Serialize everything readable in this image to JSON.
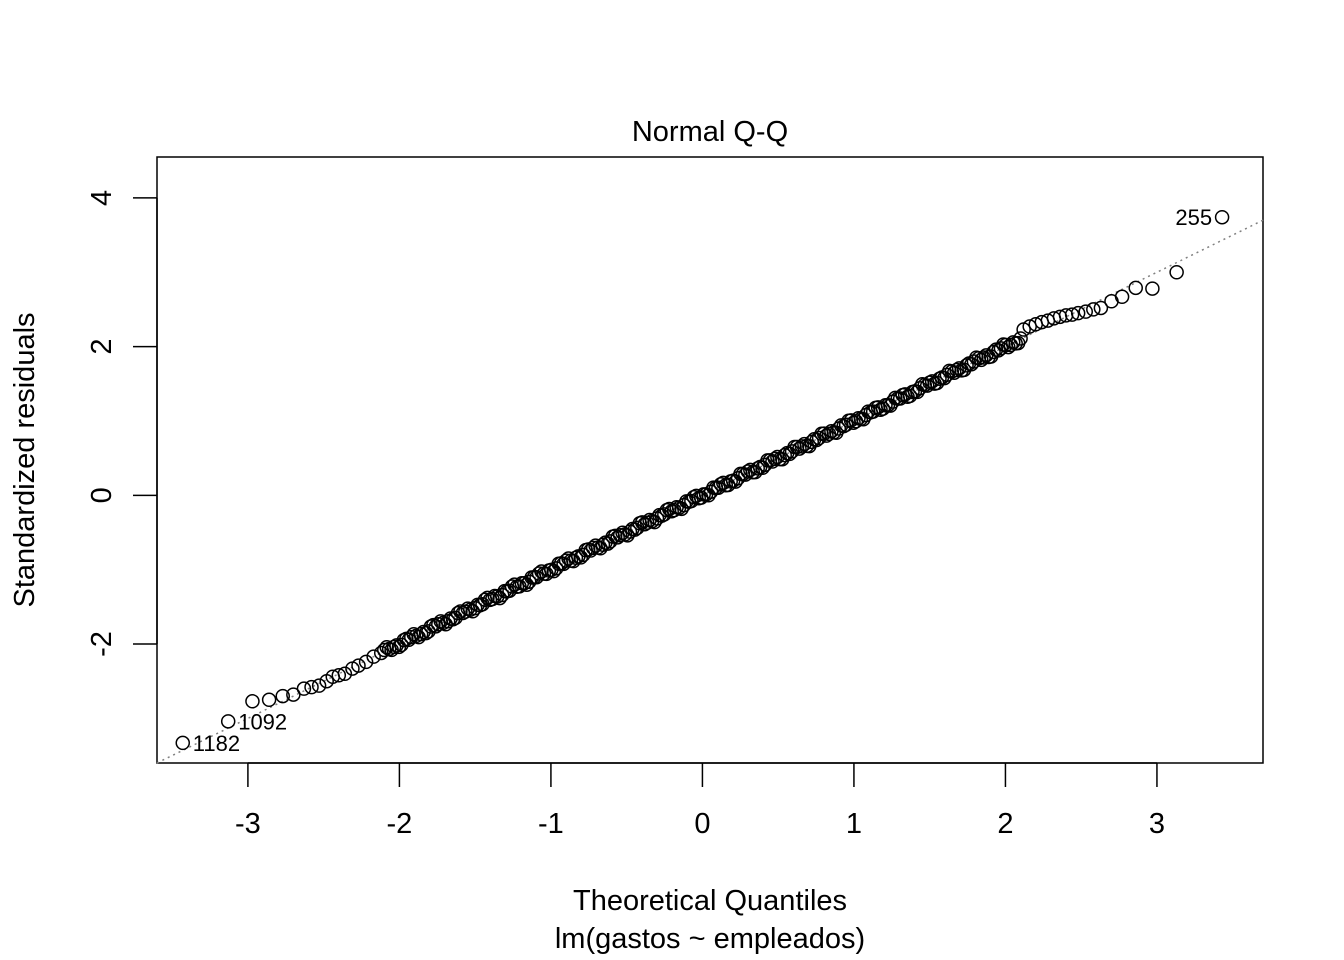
{
  "chart_data": {
    "type": "scatter",
    "title": "Normal Q-Q",
    "xlabel": "Theoretical Quantiles",
    "subtitle": "lm(gastos ~ empleados)",
    "ylabel": "Standardized residuals",
    "xlim": [
      -3.6,
      3.7
    ],
    "ylim": [
      -3.6,
      4.55
    ],
    "x_ticks": [
      "-3",
      "-2",
      "-1",
      "0",
      "1",
      "2",
      "3"
    ],
    "y_ticks": [
      "-2",
      "0",
      "2",
      "4"
    ],
    "x_tick_values": [
      -3,
      -2,
      -1,
      0,
      1,
      2,
      3
    ],
    "y_tick_values": [
      -2,
      0,
      2,
      4
    ],
    "reference_line": {
      "intercept": 0.0,
      "slope": 1.0,
      "style": "dotted",
      "color": "#808080"
    },
    "labeled_points": [
      {
        "label": "255",
        "x": 3.43,
        "y": 3.74
      },
      {
        "label": "1092",
        "x": -3.13,
        "y": -3.04
      },
      {
        "label": "1182",
        "x": -3.43,
        "y": -3.33
      }
    ],
    "tail_points": [
      [
        3.13,
        3.0
      ],
      [
        2.97,
        2.78
      ],
      [
        2.86,
        2.79
      ],
      [
        2.77,
        2.67
      ],
      [
        2.7,
        2.61
      ],
      [
        2.63,
        2.52
      ],
      [
        2.58,
        2.5
      ],
      [
        2.53,
        2.47
      ],
      [
        2.48,
        2.45
      ],
      [
        2.44,
        2.43
      ],
      [
        2.4,
        2.42
      ],
      [
        2.36,
        2.4
      ],
      [
        2.32,
        2.38
      ],
      [
        2.28,
        2.35
      ],
      [
        2.24,
        2.33
      ],
      [
        2.2,
        2.3
      ],
      [
        2.16,
        2.27
      ],
      [
        2.12,
        2.23
      ],
      [
        -2.97,
        -2.77
      ],
      [
        -2.86,
        -2.75
      ],
      [
        -2.77,
        -2.7
      ],
      [
        -2.7,
        -2.68
      ],
      [
        -2.63,
        -2.6
      ],
      [
        -2.58,
        -2.58
      ],
      [
        -2.53,
        -2.56
      ],
      [
        -2.48,
        -2.5
      ],
      [
        -2.44,
        -2.44
      ],
      [
        -2.4,
        -2.42
      ],
      [
        -2.36,
        -2.4
      ],
      [
        -2.31,
        -2.33
      ],
      [
        -2.27,
        -2.29
      ],
      [
        -2.22,
        -2.24
      ],
      [
        -2.17,
        -2.17
      ],
      [
        -2.12,
        -2.12
      ]
    ],
    "body_range": [
      -2.1,
      2.1
    ],
    "body_count": 260,
    "marker": "open-circle",
    "point_color": "#000000",
    "grid": false,
    "legend": "none"
  }
}
